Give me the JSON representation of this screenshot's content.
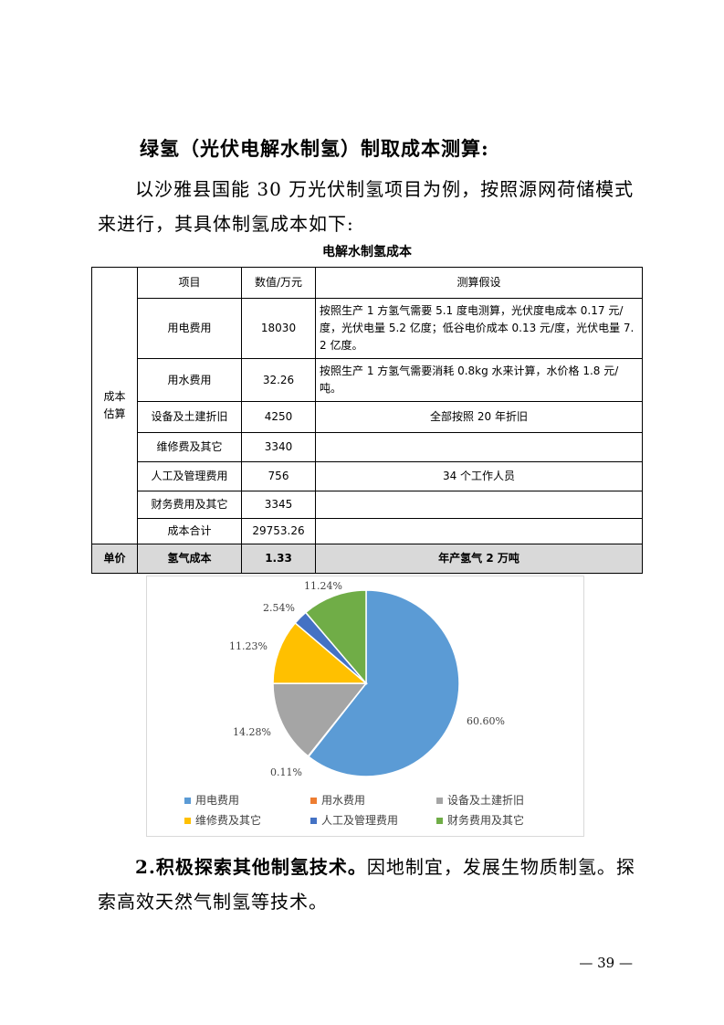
{
  "heading": "绿氢（光伏电解水制氢）制取成本测算:",
  "intro_line1": "以沙雅县国能 30 万光伏制氢项目为例，按照源网荷储模式",
  "intro_line2": "来进行，其具体制氢成本如下:",
  "table_caption": "电解水制氢成本",
  "table": {
    "group_label": "成本\n估算",
    "headers": [
      "项目",
      "数值/万元",
      "测算假设"
    ],
    "rows": [
      [
        "用电费用",
        "18030",
        "按照生产 1 方氢气需要 5.1 度电测算，光伏度电成本 0.17 元/度，光伏电量 5.2 亿度；低谷电价成本 0.13 元/度，光伏电量 7.2 亿度。"
      ],
      [
        "用水费用",
        "32.26",
        "按照生产 1 方氢气需要消耗 0.8kg 水来计算，水价格 1.8 元/吨。"
      ],
      [
        "设备及土建折旧",
        "4250",
        "全部按照 20 年折旧"
      ],
      [
        "维修费及其它",
        "3340",
        ""
      ],
      [
        "人工及管理费用",
        "756",
        "34 个工作人员"
      ],
      [
        "财务费用及其它",
        "3345",
        ""
      ],
      [
        "成本合计",
        "29753.26",
        ""
      ]
    ],
    "last_row": [
      "单价",
      "氢气成本",
      "1.33",
      "年产氢气 2 万吨"
    ]
  },
  "chart_data": {
    "type": "pie",
    "categories": [
      "用电费用",
      "用水费用",
      "设备及土建折旧",
      "维修费及其它",
      "人工及管理费用",
      "财务费用及其它"
    ],
    "values": [
      60.6,
      0.11,
      14.28,
      11.23,
      2.54,
      11.24
    ],
    "labels": [
      "60.60%",
      "0.11%",
      "14.28%",
      "11.23%",
      "2.54%",
      "11.24%"
    ],
    "colors": [
      "#5b9bd5",
      "#ed7d31",
      "#a5a5a5",
      "#ffc000",
      "#4472c4",
      "#70ad47"
    ],
    "legend": "bottom",
    "start": "top, clockwise"
  },
  "para2_bold": "2.积极探索其他制氢技术。",
  "para2_rest": "因地制宜，发展生物质制氢。探",
  "para2_line2": "索高效天然气制氢等技术。",
  "page_number": "— 39 —"
}
